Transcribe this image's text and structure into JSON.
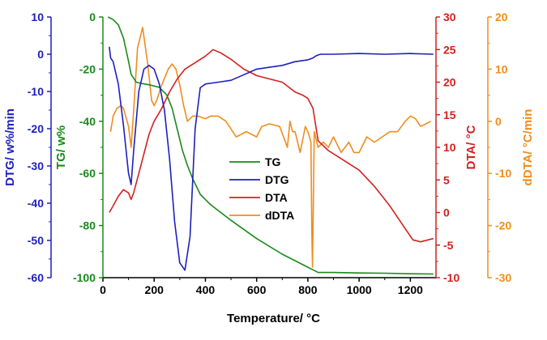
{
  "chart_data": {
    "type": "line",
    "x_axis": {
      "label": "Temperature/ °C",
      "range": [
        0,
        1300
      ],
      "ticks": [
        0,
        200,
        400,
        600,
        800,
        1000,
        1200
      ]
    },
    "y_axes": [
      {
        "id": "dtg",
        "label": "DTG/ w%/min",
        "range": [
          -60,
          10
        ],
        "ticks": [
          10,
          0,
          -10,
          -20,
          -30,
          -40,
          -50,
          -60
        ],
        "color": "#1f1fbf",
        "side": "left-outer"
      },
      {
        "id": "tg",
        "label": "TG/ w%",
        "range": [
          -100,
          0
        ],
        "ticks": [
          0,
          -20,
          -40,
          -60,
          -80,
          -100
        ],
        "color": "#1a8a1a",
        "side": "left-inner"
      },
      {
        "id": "dta",
        "label": "DTA/ °C",
        "range": [
          -10,
          30
        ],
        "ticks": [
          30,
          25,
          20,
          15,
          10,
          5,
          0,
          -5,
          -10
        ],
        "color": "#d42020",
        "side": "right-inner"
      },
      {
        "id": "ddta",
        "label": "dDTA/ °C/min",
        "range": [
          -30,
          20
        ],
        "ticks": [
          20,
          10,
          0,
          -10,
          -20,
          -30
        ],
        "color": "#f08c1e",
        "side": "right-outer"
      }
    ],
    "series": [
      {
        "name": "TG",
        "axis": "tg",
        "color": "#1a8a1a",
        "x": [
          20,
          40,
          60,
          80,
          100,
          110,
          130,
          150,
          180,
          220,
          250,
          270,
          290,
          310,
          330,
          350,
          380,
          420,
          500,
          600,
          700,
          780,
          820,
          840,
          900,
          1000,
          1100,
          1200,
          1290
        ],
        "y": [
          0,
          -1,
          -3,
          -8,
          -17,
          -22,
          -25,
          -25.5,
          -26,
          -27,
          -30,
          -35,
          -43,
          -51,
          -57,
          -62,
          -68,
          -72,
          -78,
          -85,
          -91,
          -95,
          -97,
          -98,
          -98,
          -98.2,
          -98.3,
          -98.5,
          -98.6
        ]
      },
      {
        "name": "DTG",
        "axis": "dtg",
        "color": "#1f1fbf",
        "x": [
          25,
          30,
          40,
          60,
          80,
          100,
          110,
          120,
          140,
          160,
          180,
          200,
          220,
          240,
          260,
          280,
          300,
          320,
          340,
          360,
          380,
          400,
          450,
          500,
          550,
          600,
          650,
          700,
          750,
          800,
          820,
          830,
          840,
          850,
          900,
          1000,
          1100,
          1200,
          1290
        ],
        "y": [
          2,
          -1,
          -2,
          -8,
          -19,
          -32,
          -35,
          -26,
          -10,
          -4,
          -3,
          -4,
          -8,
          -15,
          -28,
          -45,
          -56,
          -58,
          -49,
          -20,
          -9,
          -8,
          -7.5,
          -7,
          -5.5,
          -4,
          -3.5,
          -3,
          -2,
          -1.5,
          -1,
          -0.5,
          -0.2,
          0,
          0,
          0.2,
          0,
          0.2,
          0
        ]
      },
      {
        "name": "DTA",
        "axis": "dta",
        "color": "#d42020",
        "x": [
          25,
          40,
          60,
          80,
          100,
          110,
          120,
          140,
          160,
          180,
          200,
          230,
          260,
          290,
          320,
          360,
          400,
          430,
          460,
          500,
          550,
          600,
          650,
          700,
          750,
          780,
          800,
          820,
          840,
          880,
          940,
          1000,
          1060,
          1120,
          1180,
          1210,
          1240,
          1290
        ],
        "y": [
          0,
          1,
          2.5,
          3.5,
          3,
          2,
          3,
          6,
          9,
          12,
          14,
          16,
          18.5,
          20.5,
          22,
          23,
          24,
          25,
          24.5,
          23.5,
          22,
          21,
          20.5,
          20,
          18.5,
          18,
          17.5,
          16,
          11,
          9.5,
          8,
          6.5,
          4,
          1,
          -2.5,
          -4.2,
          -4.5,
          -4
        ]
      },
      {
        "name": "dDTA",
        "axis": "ddta",
        "color": "#f08c1e",
        "x": [
          30,
          40,
          55,
          70,
          80,
          100,
          110,
          120,
          135,
          155,
          175,
          190,
          200,
          210,
          230,
          255,
          270,
          285,
          300,
          315,
          330,
          350,
          370,
          400,
          420,
          450,
          480,
          520,
          560,
          600,
          620,
          650,
          690,
          720,
          730,
          740,
          750,
          770,
          790,
          800,
          812,
          815,
          818,
          825,
          840,
          860,
          880,
          900,
          930,
          960,
          980,
          1000,
          1030,
          1060,
          1090,
          1120,
          1150,
          1180,
          1200,
          1220,
          1240,
          1260,
          1280
        ],
        "y": [
          -2,
          1,
          2.5,
          3,
          2.5,
          -1,
          -5,
          2,
          14,
          18,
          11,
          4,
          3,
          4,
          7,
          10,
          11,
          10,
          7,
          3,
          0,
          1,
          1,
          0.5,
          1,
          1,
          0,
          -3,
          -2,
          -3,
          -1,
          -0.5,
          -1,
          -5,
          0,
          -2,
          -2,
          -6,
          -1,
          -2,
          -4,
          -20,
          -28,
          -2,
          -5,
          -4,
          -5,
          -3,
          -6,
          -4,
          -6,
          -6,
          -3,
          -4,
          -3,
          -2,
          -2,
          0,
          1,
          0.5,
          -1,
          -0.5,
          0
        ]
      }
    ],
    "legend": {
      "placement": "center",
      "entries": [
        "TG",
        "DTG",
        "DTA",
        "dDTA"
      ]
    },
    "grid": false
  }
}
